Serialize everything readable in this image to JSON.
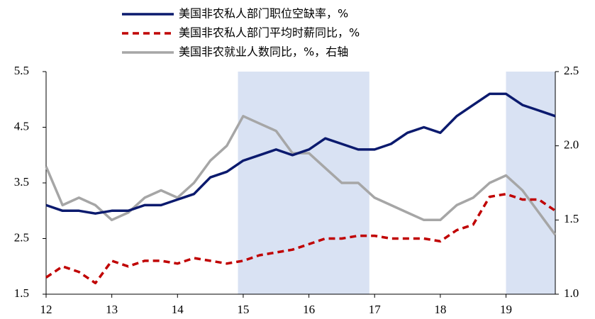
{
  "chart_data": {
    "type": "line",
    "x": [
      12,
      12.25,
      12.5,
      12.75,
      13,
      13.25,
      13.5,
      13.75,
      14,
      14.25,
      14.5,
      14.75,
      15,
      15.25,
      15.5,
      15.75,
      16,
      16.25,
      16.5,
      16.75,
      17,
      17.25,
      17.5,
      17.75,
      18,
      18.25,
      18.5,
      18.75,
      19,
      19.25,
      19.5,
      19.75
    ],
    "series": [
      {
        "name": "美国非农私人部门职位空缺率，%",
        "color": "#0b1a6e",
        "dash": false,
        "values": [
          3.1,
          3.0,
          3.0,
          2.95,
          3.0,
          3.0,
          3.1,
          3.1,
          3.2,
          3.3,
          3.6,
          3.7,
          3.9,
          4.0,
          4.1,
          4.0,
          4.1,
          4.3,
          4.2,
          4.1,
          4.1,
          4.2,
          4.4,
          4.5,
          4.4,
          4.7,
          4.9,
          5.1,
          5.1,
          4.9,
          4.8,
          4.7
        ]
      },
      {
        "name": "美国非农私人部门平均时薪同比，%",
        "color": "#c00000",
        "dash": true,
        "values": [
          1.8,
          2.0,
          1.9,
          1.7,
          2.1,
          2.0,
          2.1,
          2.1,
          2.05,
          2.15,
          2.1,
          2.05,
          2.1,
          2.2,
          2.25,
          2.3,
          2.4,
          2.5,
          2.5,
          2.55,
          2.55,
          2.5,
          2.5,
          2.5,
          2.45,
          2.65,
          2.75,
          3.25,
          3.3,
          3.2,
          3.2,
          3.0
        ]
      },
      {
        "name": "美国非农就业人数同比，%，右轴",
        "color": "#a6a6a6",
        "dash": false,
        "axis": "y2",
        "values": [
          1.86,
          1.6,
          1.65,
          1.6,
          1.5,
          1.55,
          1.65,
          1.7,
          1.65,
          1.75,
          1.9,
          2.0,
          2.2,
          2.15,
          2.1,
          1.95,
          1.95,
          1.85,
          1.75,
          1.75,
          1.65,
          1.6,
          1.55,
          1.5,
          1.5,
          1.6,
          1.65,
          1.75,
          1.8,
          1.7,
          1.55,
          1.4
        ]
      }
    ],
    "shaded_spans": [
      [
        14.92,
        16.92
      ],
      [
        19.0,
        19.75
      ]
    ],
    "shade_color": "#d9e2f3",
    "xlim": [
      12,
      19.75
    ],
    "xticks": [
      12,
      13,
      14,
      15,
      16,
      17,
      18,
      19
    ],
    "ylim": [
      1.5,
      5.5
    ],
    "yticks": [
      1.5,
      2.5,
      3.5,
      4.5,
      5.5
    ],
    "y2lim": [
      1.0,
      2.5
    ],
    "y2ticks": [
      {
        "value": 1,
        "label": "1.0"
      },
      1.5,
      {
        "value": 2,
        "label": "2.0"
      },
      2.5
    ]
  }
}
